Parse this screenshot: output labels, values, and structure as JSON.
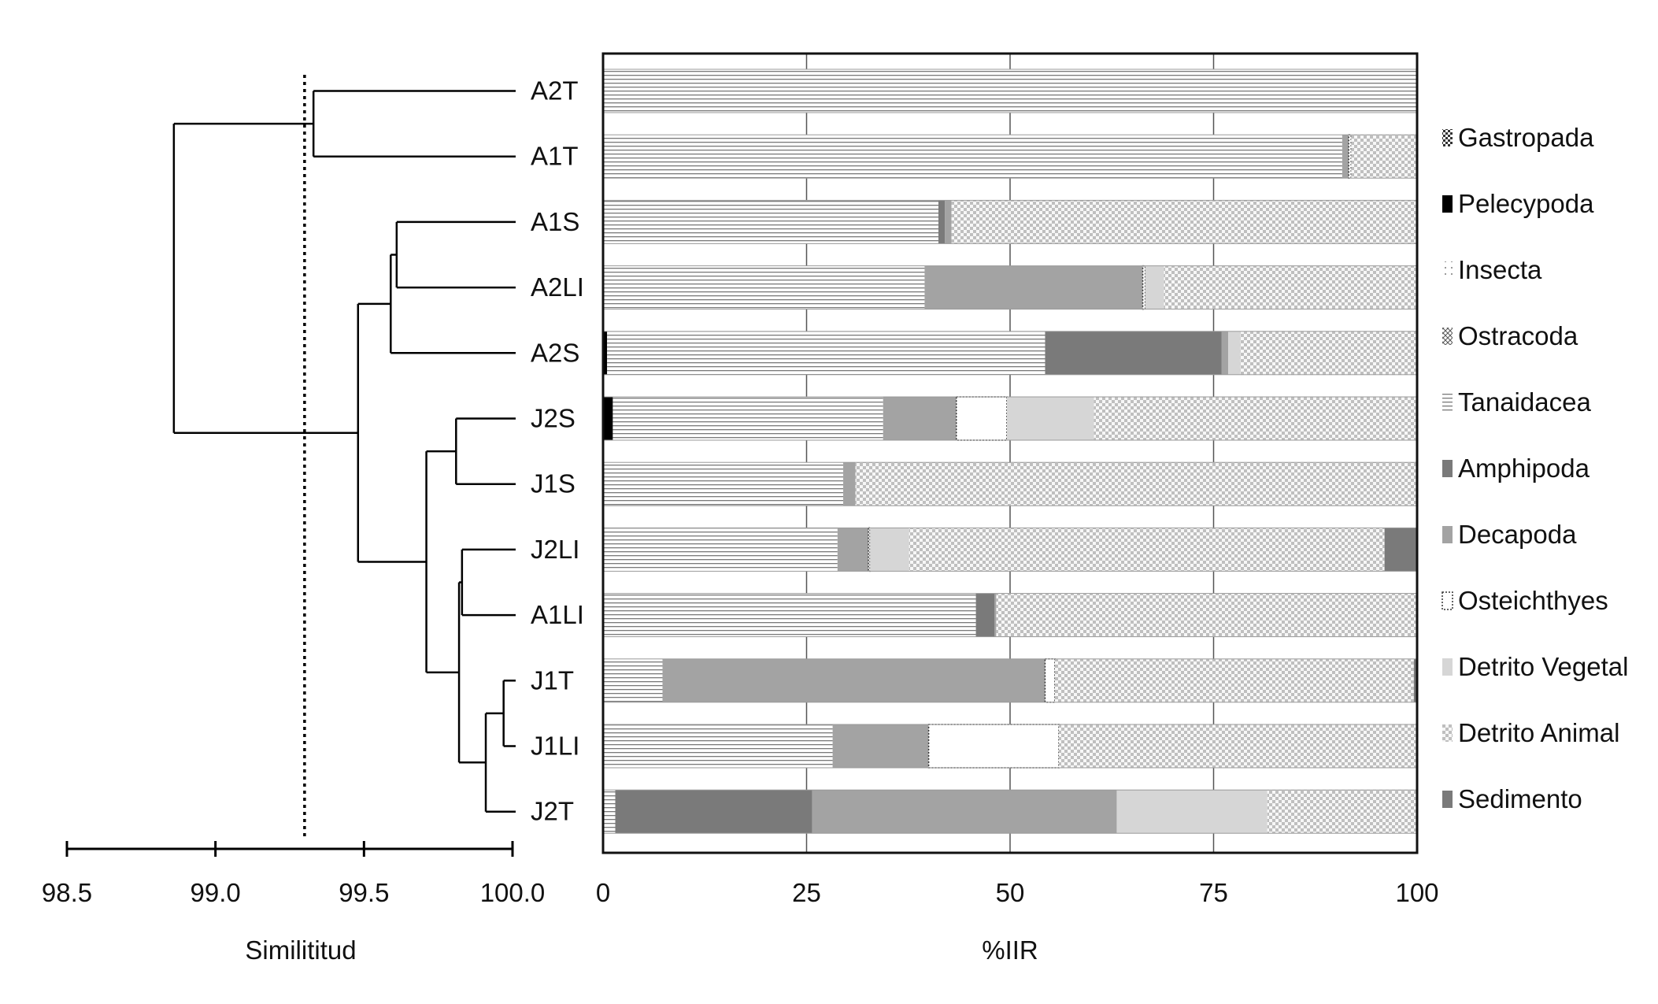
{
  "chart_data": [
    {
      "type": "dendrogram",
      "xlabel": "Similititud",
      "xticks": [
        "98.5",
        "99.0",
        "99.5",
        "100.0"
      ],
      "xlim": [
        98.5,
        100.0
      ],
      "cut_line": 99.3,
      "leaves": [
        "A2T",
        "A1T",
        "A1S",
        "A2LI",
        "A2S",
        "J2S",
        "J1S",
        "J2LI",
        "A1LI",
        "J1T",
        "J1LI",
        "J2T"
      ],
      "merges": [
        {
          "id": "c1",
          "a": "A2T",
          "b": "A1T",
          "sim": 99.33
        },
        {
          "id": "c2",
          "a": "A1S",
          "b": "A2LI",
          "sim": 99.61
        },
        {
          "id": "c3",
          "a": "c2",
          "b": "A2S",
          "sim": 99.59
        },
        {
          "id": "c4",
          "a": "J1T",
          "b": "J1LI",
          "sim": 99.97
        },
        {
          "id": "c5",
          "a": "c4",
          "b": "J2T",
          "sim": 99.91
        },
        {
          "id": "c6",
          "a": "J2LI",
          "b": "A1LI",
          "sim": 99.83
        },
        {
          "id": "c7",
          "a": "c6",
          "b": "c5",
          "sim": 99.82
        },
        {
          "id": "c8",
          "a": "J2S",
          "b": "J1S",
          "sim": 99.81
        },
        {
          "id": "c9",
          "a": "c8",
          "b": "c7",
          "sim": 99.71
        },
        {
          "id": "c10",
          "a": "c3",
          "b": "c9",
          "sim": 99.48
        },
        {
          "id": "c11",
          "a": "c1",
          "b": "c10",
          "sim": 98.86
        }
      ]
    },
    {
      "type": "stacked_bar_horizontal",
      "xlabel": "%IIR",
      "xticks": [
        "0",
        "25",
        "50",
        "75",
        "100"
      ],
      "xlim": [
        0,
        100
      ],
      "grid": true,
      "categories": [
        "A2T",
        "A1T",
        "A1S",
        "A2LI",
        "A2S",
        "J2S",
        "J1S",
        "J2LI",
        "A1LI",
        "J1T",
        "J1LI",
        "J2T"
      ],
      "series": [
        {
          "name": "Gastropada",
          "pattern": "dots-dark",
          "values": [
            0,
            0,
            0,
            0,
            0,
            0,
            0,
            0,
            0,
            0,
            0,
            0
          ]
        },
        {
          "name": "Pelecypoda",
          "pattern": "solid-black",
          "values": [
            0,
            0,
            0,
            0,
            0.5,
            1.2,
            0,
            0,
            0,
            0,
            0,
            0
          ]
        },
        {
          "name": "Insecta",
          "pattern": "sparse-dots",
          "values": [
            0,
            0,
            0,
            0,
            0,
            0,
            0,
            0,
            0,
            0,
            0,
            0
          ]
        },
        {
          "name": "Ostracoda",
          "pattern": "cross-hatch",
          "values": [
            0,
            0,
            0,
            0,
            0,
            0,
            0,
            0,
            0,
            0,
            0,
            0
          ]
        },
        {
          "name": "Tanaidacea",
          "pattern": "horizontal-lines",
          "values": [
            100,
            90.8,
            41.2,
            39.5,
            53.8,
            33.2,
            29.5,
            28.8,
            45.8,
            7.3,
            28.2,
            1.5
          ]
        },
        {
          "name": "Amphipoda",
          "pattern": "solid-dark-gray",
          "values": [
            0,
            0,
            0.8,
            0,
            21.7,
            0,
            0,
            0,
            2.3,
            0,
            0,
            24.2
          ]
        },
        {
          "name": "Decapoda",
          "pattern": "solid-mid-gray",
          "values": [
            0,
            0.8,
            0.8,
            26.8,
            0.8,
            9.0,
            1.5,
            3.8,
            0.2,
            47.0,
            11.8,
            37.4
          ]
        },
        {
          "name": "Osteichthyes",
          "pattern": "white-outlined",
          "values": [
            0,
            0.3,
            0,
            0.3,
            0,
            6.2,
            0,
            0.2,
            0,
            1.2,
            16.0,
            0
          ]
        },
        {
          "name": "Detrito Vegetal",
          "pattern": "solid-light-gray",
          "values": [
            0,
            0,
            0,
            2.3,
            1.5,
            10.7,
            0,
            4.8,
            0,
            0,
            0,
            18.5
          ]
        },
        {
          "name": "Detrito Animal",
          "pattern": "checkerboard",
          "values": [
            0,
            8.1,
            57.2,
            31.1,
            21.7,
            39.7,
            69.0,
            58.4,
            51.7,
            44.1,
            44.0,
            18.4
          ]
        },
        {
          "name": "Sedimento",
          "pattern": "solid-dark-gray",
          "values": [
            0,
            0,
            0,
            0,
            0,
            0,
            0,
            4.0,
            0,
            0.4,
            0,
            0
          ]
        }
      ],
      "legend_position": "right"
    }
  ]
}
